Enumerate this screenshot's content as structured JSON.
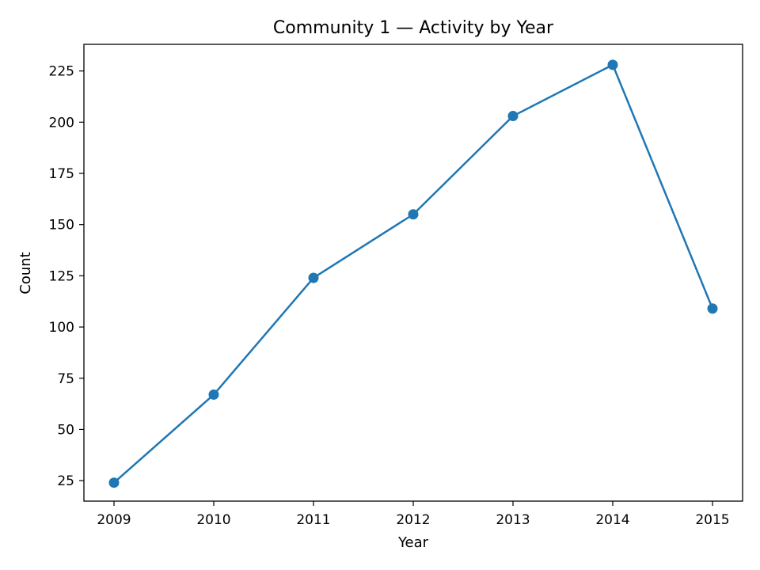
{
  "chart_data": {
    "type": "line",
    "title": "Community 1 — Activity by Year",
    "xlabel": "Year",
    "ylabel": "Count",
    "categories": [
      "2009",
      "2010",
      "2011",
      "2012",
      "2013",
      "2014",
      "2015"
    ],
    "series": [
      {
        "values": [
          24,
          67,
          124,
          155,
          203,
          228,
          109
        ],
        "color": "#1f77b4"
      }
    ],
    "yticks": [
      25,
      50,
      75,
      100,
      125,
      150,
      175,
      200,
      225
    ],
    "ylim": [
      15,
      238
    ],
    "grid": false,
    "legend": "none"
  }
}
